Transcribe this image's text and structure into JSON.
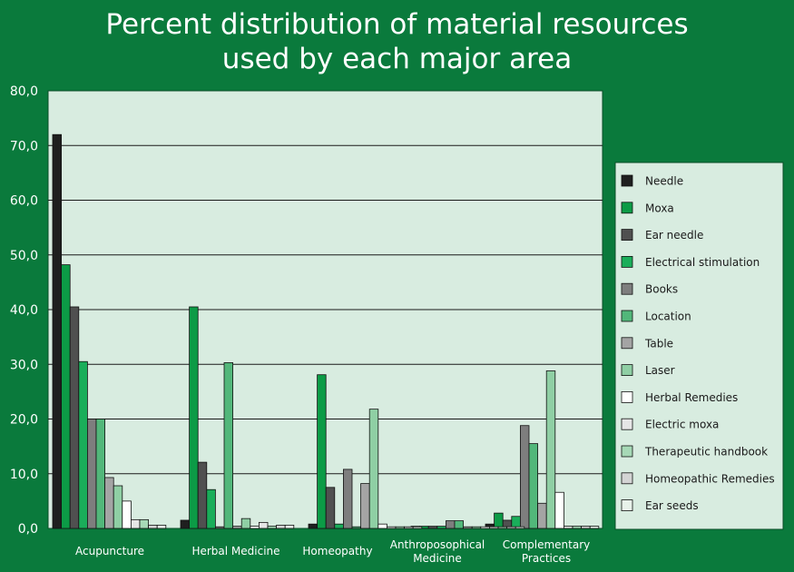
{
  "chart_data": {
    "type": "bar",
    "title": [
      "Percent distribution of material resources",
      "used by each major area"
    ],
    "xlabel": "",
    "ylabel": "",
    "ylim": [
      0,
      80
    ],
    "yticks": [
      "0,0",
      "10,0",
      "20,0",
      "30,0",
      "40,0",
      "50,0",
      "60,0",
      "70,0",
      "80,0"
    ],
    "grid": true,
    "legend_position": "right",
    "categories": [
      [
        "Acupuncture"
      ],
      [
        "Herbal Medicine"
      ],
      [
        "Homeopathy"
      ],
      [
        "Anthroposophical",
        "Medicine"
      ],
      [
        "Complementary",
        "Practices"
      ]
    ],
    "series": [
      {
        "name": "Needle",
        "color": "#1f1f1f",
        "values": [
          72,
          1.5,
          0.8,
          0.4,
          0.8
        ]
      },
      {
        "name": "Moxa",
        "color": "#0c9b46",
        "values": [
          48.2,
          40.5,
          28.1,
          0.4,
          2.8
        ]
      },
      {
        "name": "Ear needle",
        "color": "#505050",
        "values": [
          40.5,
          12.1,
          7.5,
          0.4,
          1.5
        ]
      },
      {
        "name": "Electrical stimulation",
        "color": "#1aae5a",
        "values": [
          30.5,
          7.1,
          0.8,
          0.4,
          2.2
        ]
      },
      {
        "name": "Books",
        "color": "#7e7e7e",
        "values": [
          20,
          0.3,
          10.8,
          1.4,
          18.8
        ]
      },
      {
        "name": "Location",
        "color": "#52b77a",
        "values": [
          20,
          30.3,
          0.3,
          1.4,
          15.5
        ]
      },
      {
        "name": "Table",
        "color": "#a4a4a4",
        "values": [
          9.3,
          0.4,
          8.2,
          0.3,
          4.6
        ]
      },
      {
        "name": "Laser",
        "color": "#8fcfa4",
        "values": [
          7.8,
          1.8,
          21.8,
          0.3,
          28.8
        ]
      },
      {
        "name": "Herbal Remedies",
        "color": "#ffffff",
        "values": [
          5,
          0.4,
          0.8,
          0.3,
          6.6
        ]
      },
      {
        "name": "Electric moxa",
        "color": "#e6e6e6",
        "values": [
          1.6,
          1.1,
          0.3,
          0.3,
          0.4
        ]
      },
      {
        "name": "Therapeutic handbook",
        "color": "#a6d9b6",
        "values": [
          1.6,
          0.4,
          0.3,
          0.3,
          0.4
        ]
      },
      {
        "name": "Homeopathic Remedies",
        "color": "#d4d4d4",
        "values": [
          0.6,
          0.6,
          0.3,
          0.3,
          0.4
        ]
      },
      {
        "name": "Ear seeds",
        "color": "#e8f2ea",
        "values": [
          0.6,
          0.6,
          0.3,
          0.3,
          0.4
        ]
      }
    ]
  }
}
